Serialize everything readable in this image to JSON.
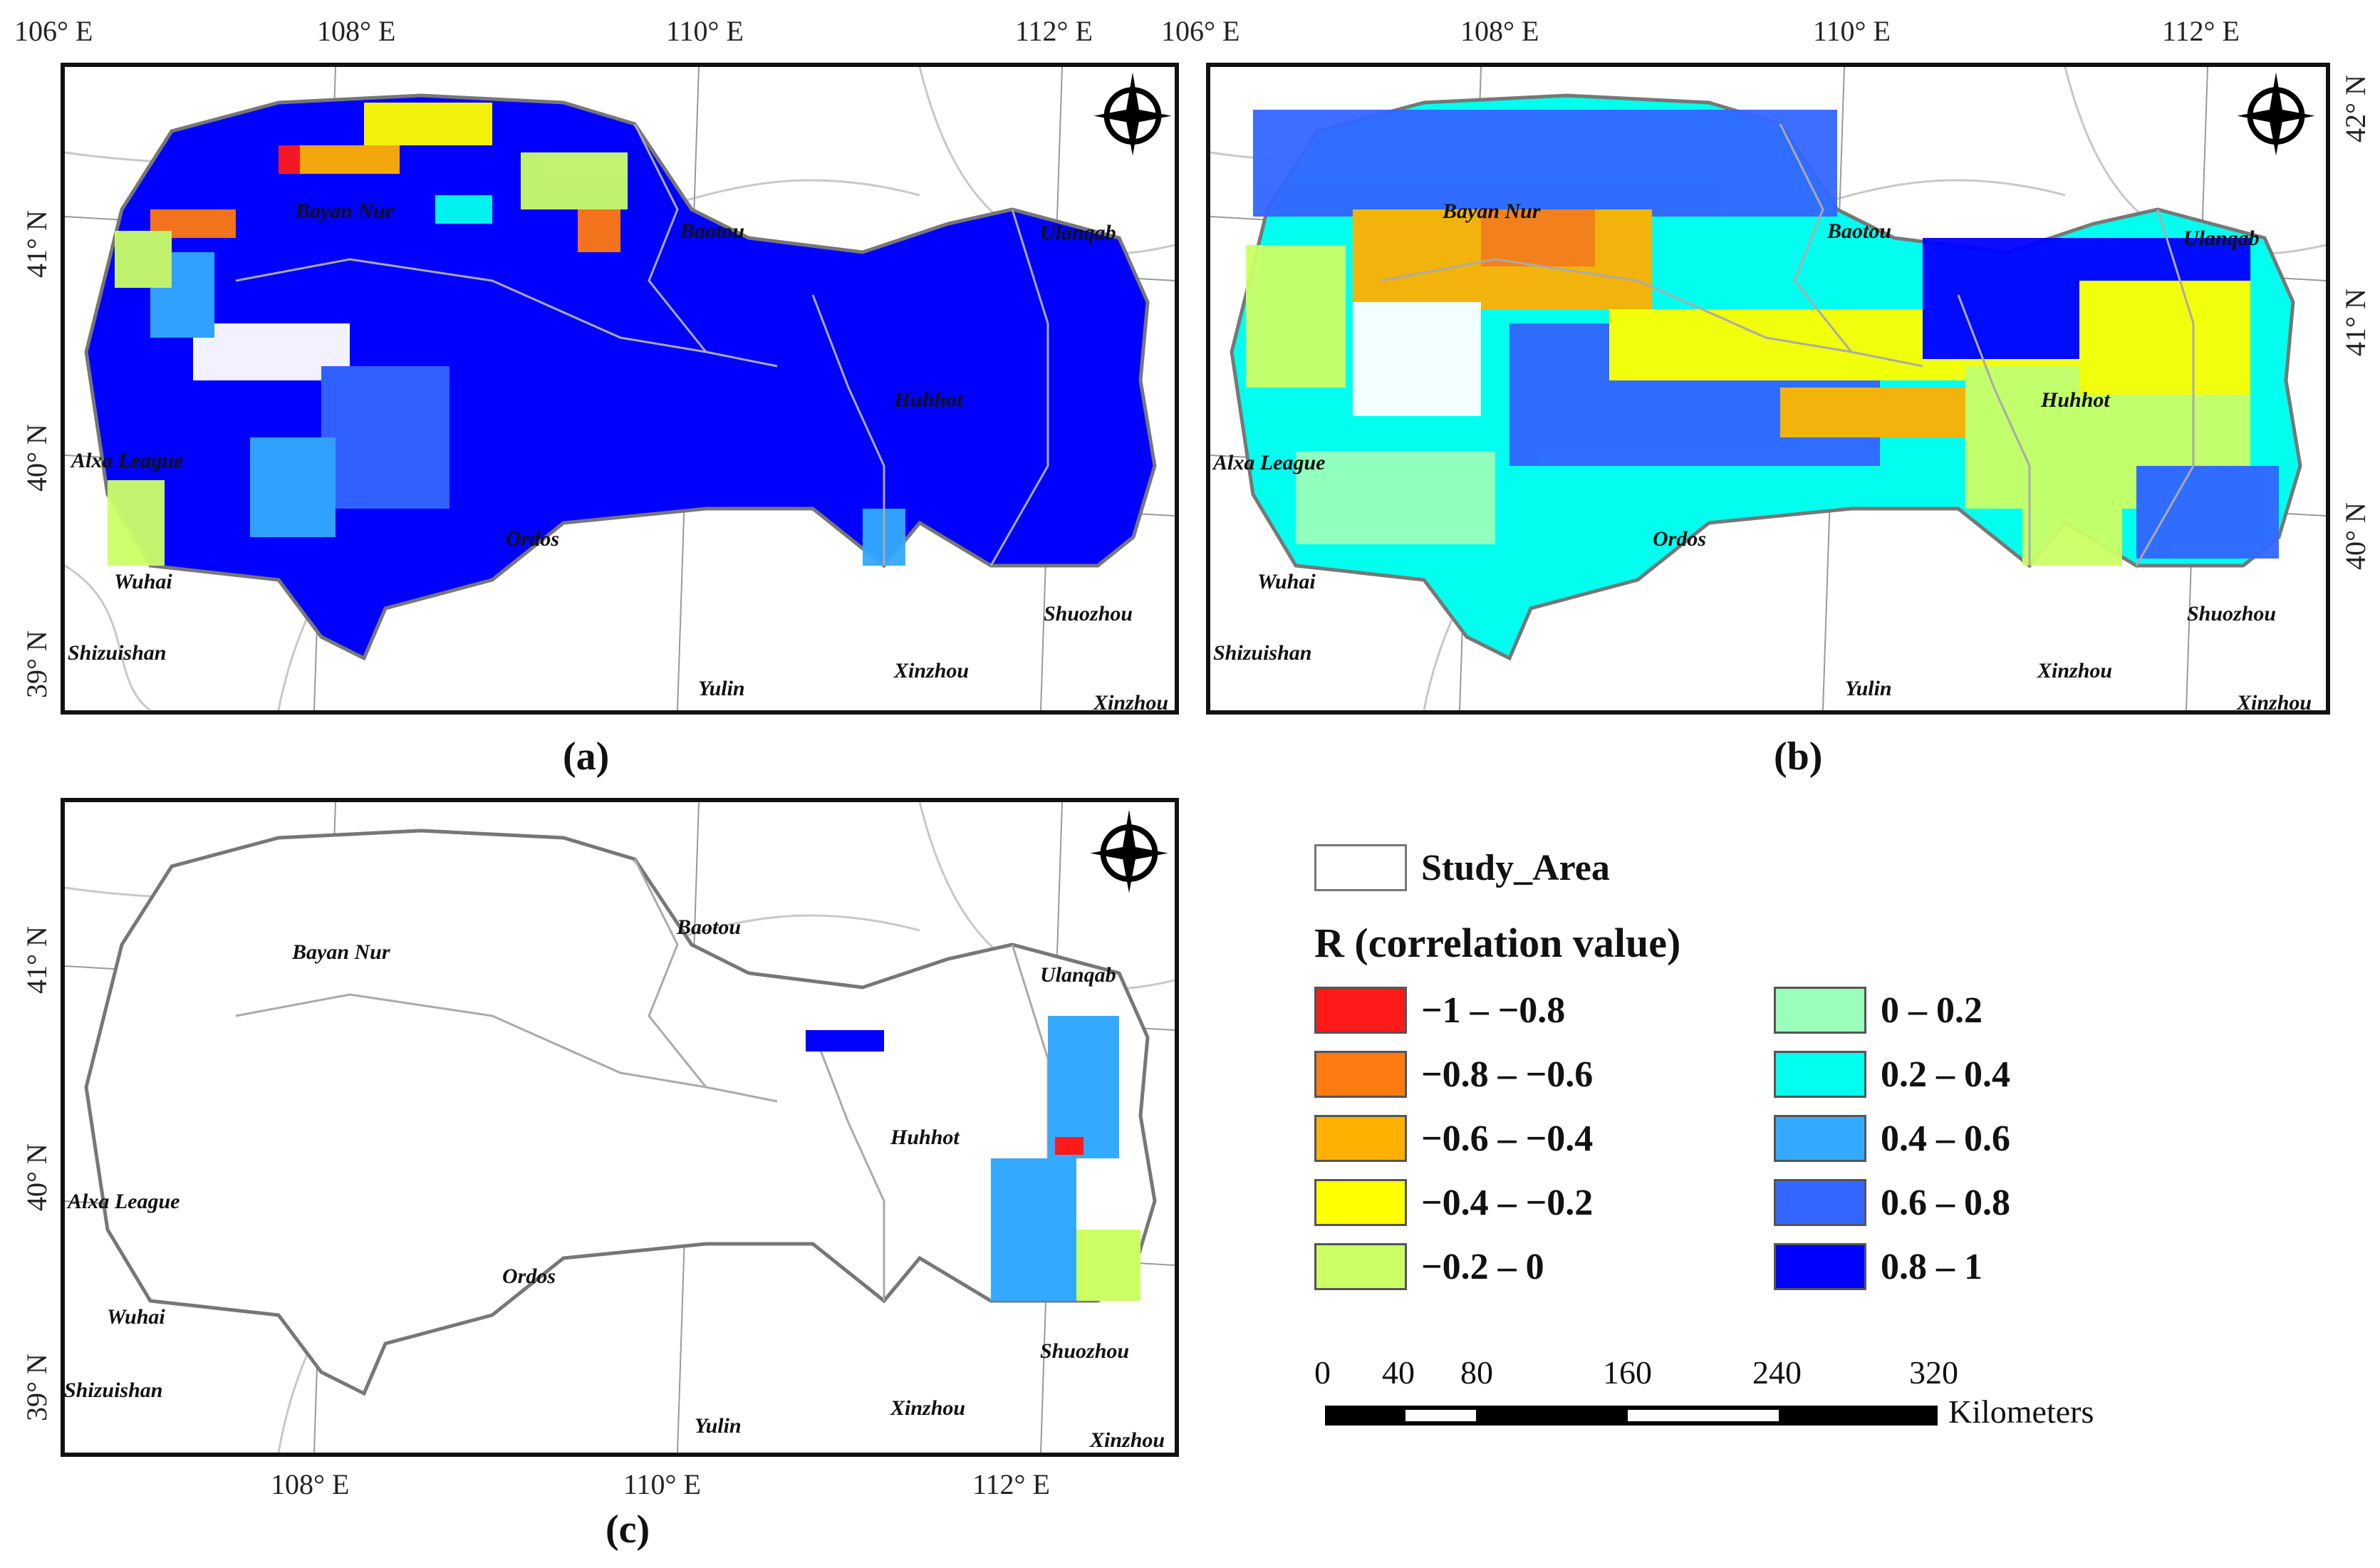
{
  "panels": [
    {
      "id": "a",
      "label": "(a)",
      "cities": [
        "Bayan Nur",
        "Baotou",
        "Ulanqab",
        "Huhhot",
        "Alxa League",
        "Ordos",
        "Wuhai",
        "Shizuishan",
        "Yulin",
        "Xinzhou",
        "Shuozhou",
        "Xinzhou"
      ],
      "top_ticks": [
        "106° E",
        "108° E",
        "110° E",
        "112° E"
      ],
      "left_ticks": [
        "41° N",
        "40° N",
        "39° N"
      ]
    },
    {
      "id": "b",
      "label": "(b)",
      "cities": [
        "Bayan Nur",
        "Baotou",
        "Ulanqab",
        "Huhhot",
        "Alxa League",
        "Ordos",
        "Wuhai",
        "Shizuishan",
        "Yulin",
        "Xinzhou",
        "Shuozhou",
        "Xinzhou"
      ],
      "top_ticks": [
        "106° E",
        "108° E",
        "110° E",
        "112° E"
      ],
      "right_ticks": [
        "42° N",
        "41° N",
        "40° N"
      ]
    },
    {
      "id": "c",
      "label": "(c)",
      "cities": [
        "Bayan Nur",
        "Baotou",
        "Ulanqab",
        "Huhhot",
        "Alxa League",
        "Ordos",
        "Wuhai",
        "Shizuishan",
        "Yulin",
        "Xinzhou",
        "Shuozhou",
        "Xinzhou"
      ],
      "bottom_ticks": [
        "108° E",
        "110° E",
        "112° E"
      ],
      "left_ticks": [
        "41° N",
        "40° N",
        "39° N"
      ]
    }
  ],
  "legend": {
    "study_area": "Study_Area",
    "title": "R (correlation value)",
    "classes": [
      {
        "label": "−1 – −0.8",
        "color": "#ff1a1a"
      },
      {
        "label": "−0.8 – −0.6",
        "color": "#ff7a10"
      },
      {
        "label": "−0.6 – −0.4",
        "color": "#ffb000"
      },
      {
        "label": "−0.4 – −0.2",
        "color": "#ffff00"
      },
      {
        "label": "−0.2 – 0",
        "color": "#ccff66"
      },
      {
        "label": "0 – 0.2",
        "color": "#99ffbb"
      },
      {
        "label": "0.2 – 0.4",
        "color": "#00ffee"
      },
      {
        "label": "0.4 – 0.6",
        "color": "#33aaff"
      },
      {
        "label": "0.6 – 0.8",
        "color": "#3366ff"
      },
      {
        "label": "0.8 – 1",
        "color": "#0000ff"
      }
    ]
  },
  "scale_bar": {
    "ticks": [
      "0",
      "40",
      "80",
      "160",
      "240",
      "320"
    ],
    "unit": "Kilometers"
  }
}
